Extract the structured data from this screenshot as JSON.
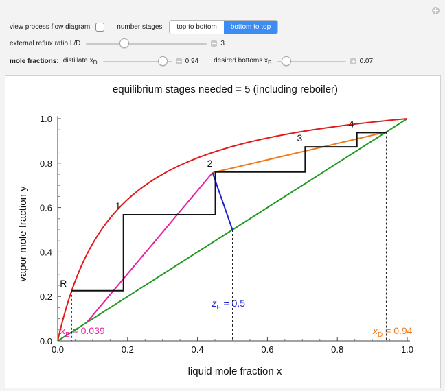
{
  "controls": {
    "process_flow_label": "view process flow diagram",
    "number_stages_label": "number stages",
    "seg_top": "top to bottom",
    "seg_bottom": "bottom to top",
    "reflux_label": "external reflux ratio L/D",
    "reflux_value": "3",
    "reflux_fraction": 0.3,
    "mole_fractions_label": "mole fractions:",
    "distillate_label": "distillate x",
    "distillate_sub": "D",
    "distillate_value": "0.94",
    "distillate_fraction": 0.94,
    "bottoms_label": "desired bottoms x",
    "bottoms_sub": "B",
    "bottoms_value": "0.07",
    "bottoms_fraction": 0.07
  },
  "chart_data": {
    "type": "line",
    "title": "equilibrium stages needed = 5 (including reboiler)",
    "xlabel": "liquid mole fraction x",
    "ylabel": "vapor mole fraction y",
    "xlim": [
      0,
      1
    ],
    "ylim": [
      0,
      1
    ],
    "x_ticks": [
      "0.0",
      "0.2",
      "0.4",
      "0.6",
      "0.8",
      "1.0"
    ],
    "y_ticks": [
      "0.0",
      "0.2",
      "0.4",
      "0.6",
      "0.8",
      "1.0"
    ],
    "relative_volatility": 7,
    "xD": 0.94,
    "xB": 0.039,
    "zF": 0.5,
    "stages": [
      {
        "label": "R",
        "x": 0.04,
        "y": 0.226
      },
      {
        "label": "1",
        "x": 0.188,
        "y": 0.568
      },
      {
        "label": "2",
        "x": 0.451,
        "y": 0.76
      },
      {
        "label": "3",
        "x": 0.708,
        "y": 0.873
      },
      {
        "label": "4",
        "x": 0.856,
        "y": 0.937
      }
    ],
    "annotations": {
      "xB_label": "x",
      "xB_sub": "B",
      "xB_text": " = 0.039",
      "zF_label": "z",
      "zF_sub": "F",
      "zF_text": " = 0.5",
      "xD_label": "x",
      "xD_sub": "D",
      "xD_text": " = 0.94"
    },
    "colors": {
      "equilibrium": "#e01b1b",
      "diagonal": "#1f9a1f",
      "rectifying": "#f07a1a",
      "stripping": "#e81ea0",
      "feed": "#1c22d6",
      "steps": "#111111"
    }
  }
}
